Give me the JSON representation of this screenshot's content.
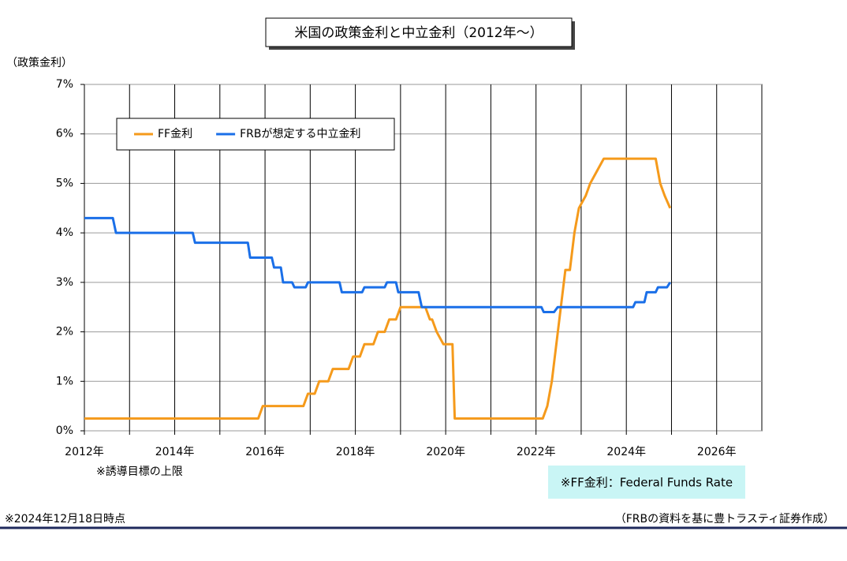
{
  "chart_data": {
    "type": "line",
    "title": "米国の政策金利と中立金利（2012年～）",
    "y_axis_label": "（政策金利）",
    "note": "※誘導目標の上限",
    "definition": "※FF金利：Federal Funds Rate",
    "as_of": "※2024年12月18日時点",
    "source": "（FRBの資料を基に豊トラスティ証券作成）",
    "xlim": [
      2012,
      2027
    ],
    "xticks": [
      {
        "value": 2012,
        "label": "2012年"
      },
      {
        "value": 2014,
        "label": "2014年"
      },
      {
        "value": 2016,
        "label": "2016年"
      },
      {
        "value": 2018,
        "label": "2018年"
      },
      {
        "value": 2020,
        "label": "2020年"
      },
      {
        "value": 2022,
        "label": "2022年"
      },
      {
        "value": 2024,
        "label": "2024年"
      },
      {
        "value": 2026,
        "label": "2026年"
      }
    ],
    "x_minor_gridlines": [
      2013,
      2015,
      2017,
      2019,
      2021,
      2023,
      2025
    ],
    "ylim": [
      0,
      7
    ],
    "yticks": [
      {
        "value": 0,
        "label": "0%"
      },
      {
        "value": 1,
        "label": "1%"
      },
      {
        "value": 2,
        "label": "2%"
      },
      {
        "value": 3,
        "label": "3%"
      },
      {
        "value": 4,
        "label": "4%"
      },
      {
        "value": 5,
        "label": "5%"
      },
      {
        "value": 6,
        "label": "6%"
      },
      {
        "value": 7,
        "label": "7%"
      }
    ],
    "grid": true,
    "legend": "upper left",
    "series": [
      {
        "name": "FF金利",
        "color": "#f59a1b",
        "x": [
          2012.0,
          2015.85,
          2015.95,
          2016.85,
          2016.95,
          2017.1,
          2017.2,
          2017.4,
          2017.5,
          2017.85,
          2017.95,
          2018.1,
          2018.2,
          2018.4,
          2018.5,
          2018.65,
          2018.75,
          2018.9,
          2019.0,
          2019.55,
          2019.65,
          2019.7,
          2019.8,
          2019.95,
          2020.15,
          2020.2,
          2022.15,
          2022.25,
          2022.35,
          2022.45,
          2022.55,
          2022.65,
          2022.75,
          2022.85,
          2022.95,
          2023.1,
          2023.2,
          2023.35,
          2023.5,
          2024.65,
          2024.75,
          2024.85,
          2024.97
        ],
        "values": [
          0.25,
          0.25,
          0.5,
          0.5,
          0.75,
          0.75,
          1,
          1,
          1.25,
          1.25,
          1.5,
          1.5,
          1.75,
          1.75,
          2,
          2,
          2.25,
          2.25,
          2.5,
          2.5,
          2.25,
          2.25,
          2,
          1.75,
          1.75,
          0.25,
          0.25,
          0.5,
          1,
          1.75,
          2.5,
          3.25,
          3.25,
          4,
          4.5,
          4.75,
          5,
          5.25,
          5.5,
          5.5,
          5,
          4.75,
          4.5
        ]
      },
      {
        "name": "FRBが想定する中立金利",
        "color": "#1a6fe8",
        "x": [
          2012,
          2012.63,
          2012.7,
          2014.4,
          2014.45,
          2015.62,
          2015.67,
          2016.15,
          2016.2,
          2016.35,
          2016.4,
          2016.6,
          2016.65,
          2016.9,
          2016.95,
          2017.65,
          2017.7,
          2018.15,
          2018.2,
          2018.65,
          2018.7,
          2018.9,
          2018.95,
          2019.4,
          2019.47,
          2022.12,
          2022.17,
          2022.4,
          2022.48,
          2024.15,
          2024.2,
          2024.4,
          2024.45,
          2024.65,
          2024.7,
          2024.9,
          2024.97
        ],
        "values": [
          4.3,
          4.3,
          4.0,
          4.0,
          3.8,
          3.8,
          3.5,
          3.5,
          3.3,
          3.3,
          3.0,
          3.0,
          2.9,
          2.9,
          3.0,
          3.0,
          2.8,
          2.8,
          2.9,
          2.9,
          3.0,
          3.0,
          2.8,
          2.8,
          2.5,
          2.5,
          2.4,
          2.4,
          2.5,
          2.5,
          2.6,
          2.6,
          2.8,
          2.8,
          2.9,
          2.9,
          3.0
        ]
      }
    ]
  }
}
